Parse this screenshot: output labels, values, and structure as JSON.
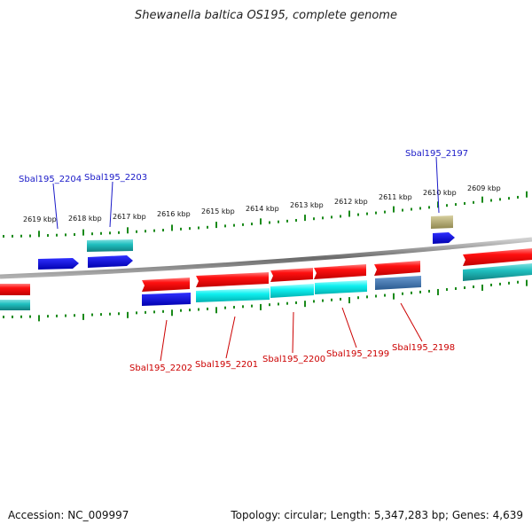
{
  "title": "Shewanella baltica OS195, complete genome",
  "footer": {
    "accession": "Accession: NC_009997",
    "topology": "Topology: circular; Length: 5,347,283 bp; Genes: 4,639"
  },
  "colors": {
    "backbone": "#808080",
    "ruler_tick": "#1a8a1a",
    "forward_gene": "#ff0000",
    "cds_blue": "#0000e0",
    "cds_cyan": "#00e0e0",
    "cds_teal": "#20c0c0",
    "cds_steel": "#4a7ab0",
    "cds_khaki": "#b8b070",
    "label_top": "#1a1ac8",
    "label_bottom": "#cc0000"
  },
  "ruler_labels": [
    "2619 kbp",
    "2618 kbp",
    "2617 kbp",
    "2616 kbp",
    "2615 kbp",
    "2614 kbp",
    "2613 kbp",
    "2612 kbp",
    "2611 kbp",
    "2610 kbp",
    "2609 kbp"
  ],
  "top_gene_labels": [
    "Sbal195_2204",
    "Sbal195_2203",
    "Sbal195_2197"
  ],
  "bottom_gene_labels": [
    "Sbal195_2202",
    "Sbal195_2201",
    "Sbal195_2200",
    "Sbal195_2199",
    "Sbal195_2198"
  ]
}
